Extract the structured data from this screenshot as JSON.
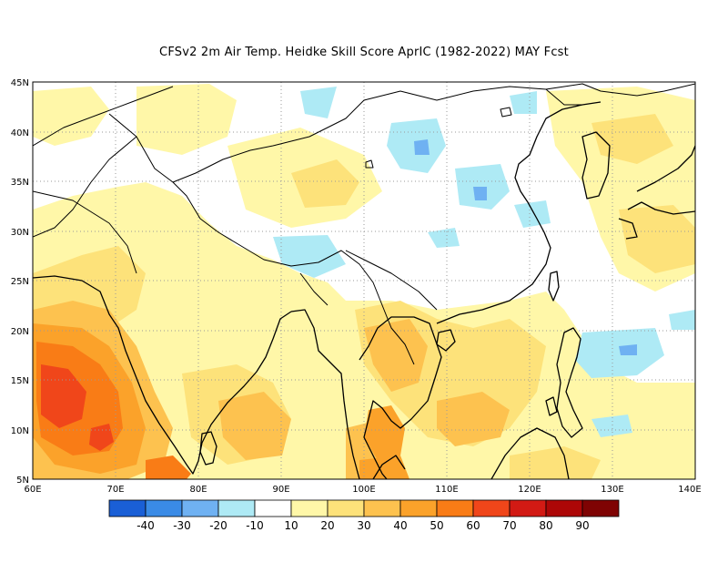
{
  "title": "CFSv2  2m Air Temp. Heidke Skill Score AprIC (1982-2022) MAY Fcst",
  "lat_labels": [
    "45N",
    "40N",
    "35N",
    "30N",
    "25N",
    "20N",
    "15N",
    "10N",
    "5N"
  ],
  "lon_labels": [
    "60E",
    "70E",
    "80E",
    "90E",
    "100E",
    "110E",
    "120E",
    "130E",
    "140E"
  ],
  "extent": {
    "lon": [
      60,
      140
    ],
    "lat": [
      5,
      45
    ]
  },
  "colorbar": {
    "colors": [
      "#1a5fd6",
      "#3a8be6",
      "#6fb1f2",
      "#aeeaf5",
      "#ffffff",
      "#fff7a8",
      "#fde27a",
      "#fdc24f",
      "#fba22a",
      "#f97c16",
      "#f0461a",
      "#d21a14",
      "#ad0707",
      "#7f0303"
    ],
    "labels": [
      "-40",
      "-30",
      "-20",
      "-10",
      "10",
      "20",
      "30",
      "40",
      "50",
      "60",
      "70",
      "80",
      "90"
    ]
  }
}
